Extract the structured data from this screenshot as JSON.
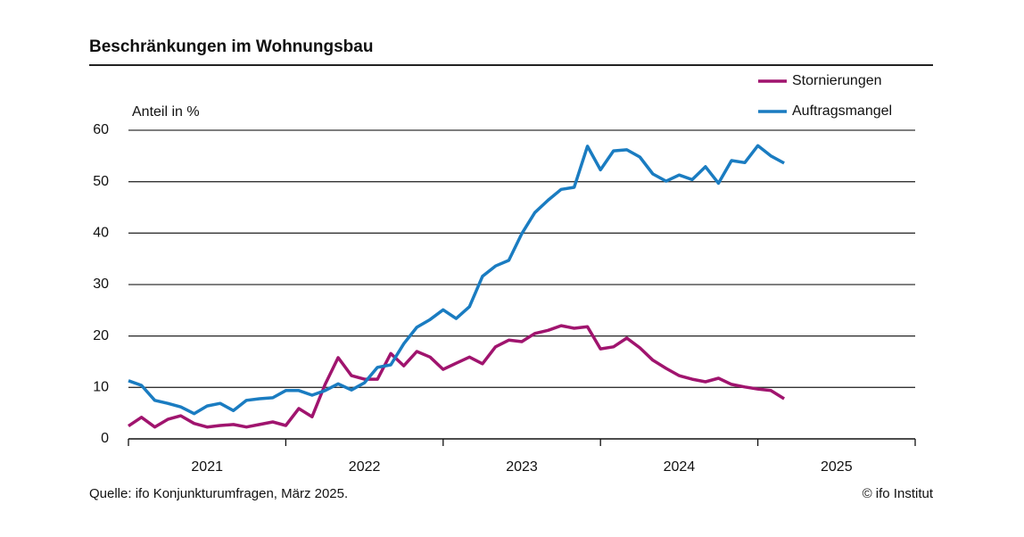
{
  "chart_data": {
    "type": "line",
    "title": "Beschränkungen im Wohnungsbau",
    "y_label": "Anteil in %",
    "source": "Quelle: ifo Konjunkturumfragen, März 2025.",
    "credit": "© ifo Institut",
    "x": [
      2021,
      2021.083,
      2021.167,
      2021.25,
      2021.333,
      2021.417,
      2021.5,
      2021.583,
      2021.667,
      2021.75,
      2021.833,
      2021.917,
      2022,
      2022.083,
      2022.167,
      2022.25,
      2022.333,
      2022.417,
      2022.5,
      2022.583,
      2022.667,
      2022.75,
      2022.833,
      2022.917,
      2023,
      2023.083,
      2023.167,
      2023.25,
      2023.333,
      2023.417,
      2023.5,
      2023.583,
      2023.667,
      2023.75,
      2023.833,
      2023.917,
      2024,
      2024.083,
      2024.167,
      2024.25,
      2024.333,
      2024.417,
      2024.5,
      2024.583,
      2024.667,
      2024.75,
      2024.833,
      2024.917,
      2025,
      2025.083,
      2025.167
    ],
    "xlim": [
      2021,
      2026
    ],
    "xticks": [
      2021,
      2022,
      2023,
      2024,
      2025,
      2026
    ],
    "year_labels": [
      "2021",
      "2022",
      "2023",
      "2024",
      "2025"
    ],
    "ylim": [
      0,
      60
    ],
    "yticks": [
      0,
      10,
      20,
      30,
      40,
      50,
      60
    ],
    "grid": true,
    "legend": "upper right",
    "series": [
      {
        "name": "Stornierungen",
        "color": "#a0146e",
        "values": [
          2.5,
          4.2,
          2.3,
          3.8,
          4.5,
          3.0,
          2.3,
          2.6,
          2.8,
          2.3,
          2.8,
          3.3,
          2.6,
          5.9,
          4.3,
          10.6,
          15.8,
          12.3,
          11.6,
          11.6,
          16.6,
          14.2,
          17.0,
          15.9,
          13.5,
          14.7,
          15.9,
          14.6,
          17.9,
          19.2,
          18.9,
          20.5,
          21.1,
          22.0,
          21.5,
          21.8,
          17.5,
          17.9,
          19.6,
          17.7,
          15.3,
          13.7,
          12.3,
          11.6,
          11.1,
          11.8,
          10.6,
          10.1,
          9.7,
          9.4,
          7.8
        ]
      },
      {
        "name": "Auftragsmangel",
        "color": "#1a7cc1",
        "values": [
          11.3,
          10.4,
          7.5,
          6.9,
          6.2,
          4.9,
          6.4,
          6.9,
          5.5,
          7.5,
          7.8,
          8.0,
          9.4,
          9.4,
          8.5,
          9.4,
          10.7,
          9.5,
          10.9,
          13.9,
          14.4,
          18.5,
          21.7,
          23.2,
          25.1,
          23.4,
          25.7,
          31.6,
          33.6,
          34.7,
          39.9,
          44.0,
          46.4,
          48.5,
          48.9,
          56.9,
          52.3,
          56.0,
          56.2,
          54.8,
          51.5,
          50.1,
          51.3,
          50.4,
          52.9,
          49.7,
          54.1,
          53.7,
          57.0,
          55.0,
          53.6
        ]
      }
    ]
  }
}
